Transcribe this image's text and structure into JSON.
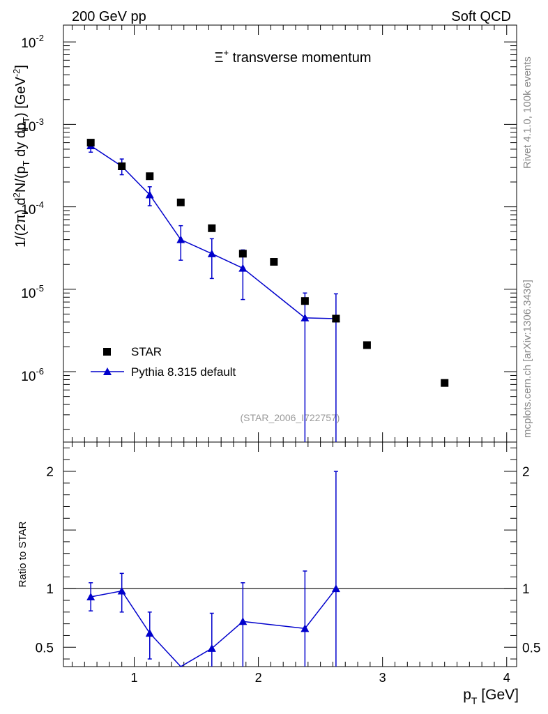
{
  "header": {
    "left": "200 GeV pp",
    "right": "Soft QCD"
  },
  "side_text": {
    "rivet": "Rivet 4.1.0,  100k events",
    "mcplots": "mcplots.cern.ch [arXiv:1306.3436]"
  },
  "colors": {
    "data": "#000000",
    "mc": "#0000cc",
    "watermark": "#999999",
    "reference_line": "#000000"
  },
  "chart_data": [
    {
      "id": "main",
      "type": "scatter",
      "title_main": "Ξ",
      "title_sup": "+",
      "title_rest": " transverse momentum",
      "watermark": "(STAR_2006_I722757)",
      "ylabel": {
        "prefix": "1/(2π)   d",
        "sup2": "2",
        "mid1": "N/(p",
        "subT1": "T",
        "mid2": " dy dp",
        "subT2": "T",
        "unit_open": ") [GeV",
        "sup_neg2": "-2",
        "unit_close": "]"
      },
      "yscale": "log",
      "ylim": [
        1.4e-07,
        0.016
      ],
      "xlim": [
        0.43,
        4.08
      ],
      "y_ticks": [
        {
          "value": 1e-06,
          "base": "10",
          "exp": "-6"
        },
        {
          "value": 1e-05,
          "base": "10",
          "exp": "-5"
        },
        {
          "value": 0.0001,
          "base": "10",
          "exp": "-4"
        },
        {
          "value": 0.001,
          "base": "10",
          "exp": "-3"
        },
        {
          "value": 0.01,
          "base": "10",
          "exp": "-2"
        }
      ],
      "legend": [
        {
          "label": "STAR",
          "marker": "square",
          "series": "star"
        },
        {
          "label": "Pythia 8.315 default",
          "marker": "triangle",
          "series": "pythia"
        }
      ],
      "series": [
        {
          "name": "STAR",
          "key": "star",
          "marker": "square",
          "x": [
            0.65,
            0.9,
            1.125,
            1.375,
            1.625,
            1.875,
            2.125,
            2.375,
            2.625,
            2.875,
            3.5
          ],
          "y": [
            0.0006,
            0.00031,
            0.000235,
            0.000113,
            5.5e-05,
            2.7e-05,
            2.15e-05,
            7.2e-06,
            4.4e-06,
            2.1e-06,
            7.3e-07
          ]
        },
        {
          "name": "Pythia 8.315 default",
          "key": "pythia",
          "marker": "triangle",
          "x": [
            0.65,
            0.9,
            1.125,
            1.375,
            1.625,
            1.875,
            2.375,
            2.625
          ],
          "y": [
            0.00055,
            0.00031,
            0.00014,
            4e-05,
            2.7e-05,
            1.8e-05,
            4.5e-06,
            4.4e-06
          ],
          "y_low": [
            0.00046,
            0.000245,
            0.000103,
            2.25e-05,
            1.35e-05,
            7.5e-06,
            1e-08,
            1e-08
          ],
          "y_high": [
            0.00064,
            0.00038,
            0.000175,
            5.9e-05,
            4.1e-05,
            3e-05,
            9e-06,
            8.8e-06
          ]
        }
      ]
    },
    {
      "id": "ratio",
      "type": "line",
      "ylabel": "Ratio to STAR",
      "xlabel": "p",
      "xlabel_sub": "T",
      "xlabel_unit": " [GeV]",
      "ylim": [
        0.335,
        2.25
      ],
      "xlim": [
        0.43,
        4.08
      ],
      "x_ticks": [
        {
          "value": 1,
          "label": "1"
        },
        {
          "value": 2,
          "label": "2"
        },
        {
          "value": 3,
          "label": "3"
        },
        {
          "value": 4,
          "label": "4"
        }
      ],
      "y_ticks": [
        {
          "value": 0.5,
          "label": "0.5"
        },
        {
          "value": 1,
          "label": "1"
        },
        {
          "value": 2,
          "label": "2"
        }
      ],
      "reference_line": 1.0,
      "series": [
        {
          "name": "Pythia 8.315 default / STAR",
          "x": [
            0.65,
            0.9,
            1.125,
            1.375,
            1.625,
            1.875,
            2.375,
            2.625
          ],
          "y": [
            0.93,
            0.98,
            0.62,
            0.33,
            0.49,
            0.72,
            0.66,
            1.0
          ],
          "y_low": [
            0.81,
            0.8,
            0.4,
            0.33,
            0.2,
            0.3,
            0.0,
            0.0
          ],
          "y_high": [
            1.05,
            1.13,
            0.8,
            0.33,
            0.79,
            1.05,
            1.15,
            2.0
          ]
        }
      ]
    }
  ]
}
